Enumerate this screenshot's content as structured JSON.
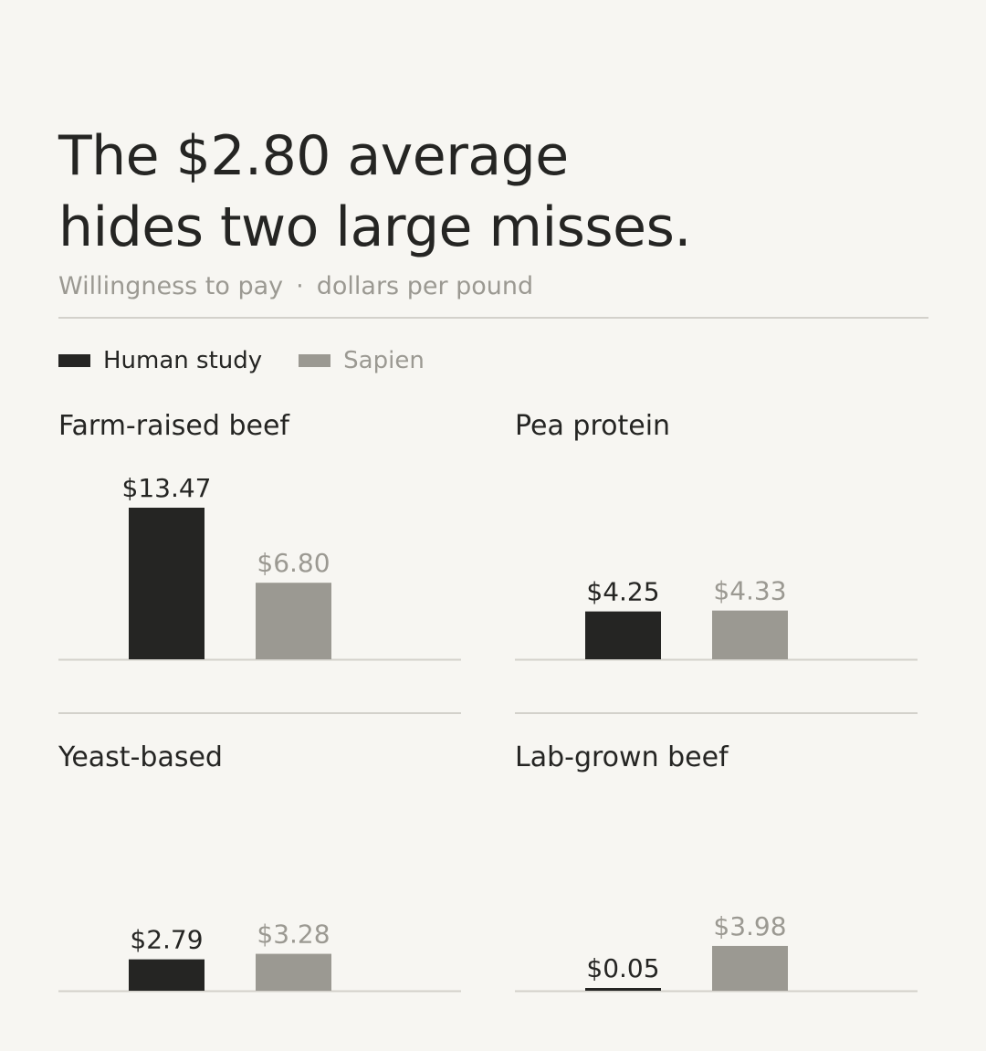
{
  "header": {
    "title_line1": "The $2.80 average",
    "title_line2": "hides two large misses.",
    "subtitle_metric": "Willingness to pay",
    "subtitle_sep": "·",
    "subtitle_unit": "dollars per pound"
  },
  "colors": {
    "human": "#252523",
    "sapien": "#9b9992",
    "rule": "#d3d1cb",
    "background": "#f7f6f2"
  },
  "legend": [
    {
      "label": "Human study",
      "color": "#252523"
    },
    {
      "label": "Sapien",
      "color": "#9b9992"
    }
  ],
  "chart_data": {
    "type": "bar",
    "title": "The $2.80 average hides two large misses.",
    "subtitle": "Willingness to pay · dollars per pound",
    "ylim": [
      0,
      13.47
    ],
    "grid": false,
    "legend_position": "top-left",
    "series": [
      {
        "name": "Human study",
        "values": [
          13.47,
          4.25,
          2.79,
          0.05
        ]
      },
      {
        "name": "Sapien",
        "values": [
          6.8,
          4.33,
          3.28,
          3.98
        ]
      }
    ],
    "panels": [
      {
        "title": "Farm-raised beef",
        "human": 13.47,
        "sapien": 6.8,
        "human_label": "$13.47",
        "sapien_label": "$6.80"
      },
      {
        "title": "Pea protein",
        "human": 4.25,
        "sapien": 4.33,
        "human_label": "$4.25",
        "sapien_label": "$4.33"
      },
      {
        "title": "Yeast-based",
        "human": 2.79,
        "sapien": 3.28,
        "human_label": "$2.79",
        "sapien_label": "$3.28"
      },
      {
        "title": "Lab-grown beef",
        "human": 0.05,
        "sapien": 3.98,
        "human_label": "$0.05",
        "sapien_label": "$3.98"
      }
    ]
  }
}
